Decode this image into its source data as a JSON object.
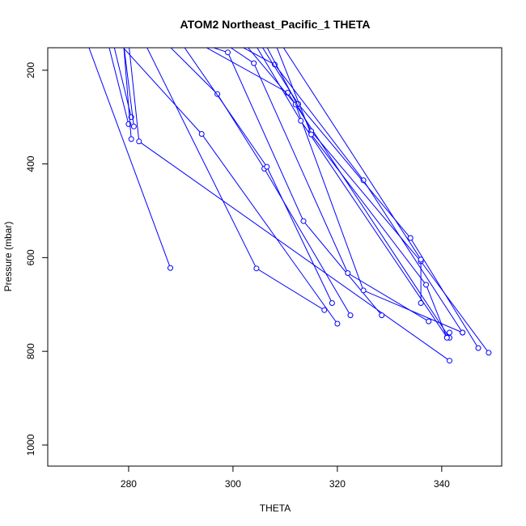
{
  "chart_data": {
    "type": "line",
    "title": "ATOM2 Northeast_Pacific_1 THETA",
    "xlabel": "THETA",
    "ylabel": "Pressure (mbar)",
    "xlim": [
      264.5,
      351.5
    ],
    "ylim": [
      1045,
      152
    ],
    "y_reversed": true,
    "x_ticks": [
      280,
      300,
      320,
      340
    ],
    "y_ticks": [
      200,
      400,
      600,
      800,
      1000
    ],
    "grid": false,
    "color": "#0000ff",
    "series": [
      {
        "x": [
          272,
          288
        ],
        "y": [
          140,
          622
        ],
        "points": [
          [
            288,
            622
          ]
        ]
      },
      {
        "x": [
          276,
          280
        ],
        "y": [
          140,
          315
        ],
        "points": [
          [
            280,
            315
          ]
        ]
      },
      {
        "x": [
          277,
          280.5
        ],
        "y": [
          140,
          300
        ],
        "points": [
          [
            280.5,
            300
          ]
        ]
      },
      {
        "x": [
          279,
          280.5
        ],
        "y": [
          140,
          347
        ],
        "points": [
          [
            280.5,
            347
          ]
        ]
      },
      {
        "x": [
          279,
          281
        ],
        "y": [
          140,
          320
        ],
        "points": [
          [
            281,
            320
          ]
        ]
      },
      {
        "x": [
          280,
          282,
          341.5
        ],
        "y": [
          140,
          352,
          820
        ],
        "points": [
          [
            282,
            352
          ],
          [
            341.5,
            820
          ]
        ]
      },
      {
        "x": [
          278,
          294,
          320
        ],
        "y": [
          140,
          336,
          741
        ],
        "points": [
          [
            294,
            336
          ],
          [
            320,
            741
          ]
        ]
      },
      {
        "x": [
          283,
          304.5,
          317.5
        ],
        "y": [
          140,
          623,
          712
        ],
        "points": [
          [
            304.5,
            623
          ],
          [
            317.5,
            712
          ]
        ]
      },
      {
        "x": [
          287,
          297,
          306,
          322.5
        ],
        "y": [
          140,
          251,
          410,
          723
        ],
        "points": [
          [
            297,
            251
          ],
          [
            306,
            410
          ],
          [
            322.5,
            723
          ]
        ]
      },
      {
        "x": [
          290,
          306.5,
          319
        ],
        "y": [
          140,
          406,
          697
        ],
        "points": [
          [
            306.5,
            406
          ],
          [
            319,
            697
          ]
        ]
      },
      {
        "x": [
          293,
          299,
          313.5,
          328.5
        ],
        "y": [
          140,
          162,
          522,
          723
        ],
        "points": [
          [
            299,
            162
          ],
          [
            313.5,
            522
          ],
          [
            328.5,
            723
          ]
        ]
      },
      {
        "x": [
          293,
          310.5,
          341.5
        ],
        "y": [
          140,
          248,
          771
        ],
        "points": [
          [
            310.5,
            248
          ],
          [
            341.5,
            771
          ]
        ]
      },
      {
        "x": [
          298,
          304,
          322,
          337.5
        ],
        "y": [
          140,
          185,
          633,
          736
        ],
        "points": [
          [
            304,
            185
          ],
          [
            322,
            633
          ],
          [
            337.5,
            736
          ]
        ]
      },
      {
        "x": [
          300,
          308,
          325,
          344
        ],
        "y": [
          140,
          188,
          435,
          760
        ],
        "points": [
          [
            308,
            188
          ],
          [
            325,
            435
          ],
          [
            344,
            760
          ]
        ]
      },
      {
        "x": [
          302,
          312,
          325,
          344
        ],
        "y": [
          140,
          273,
          670,
          760
        ],
        "points": [
          [
            312,
            273
          ],
          [
            325,
            670
          ],
          [
            344,
            760
          ]
        ]
      },
      {
        "x": [
          304,
          313,
          341,
          341.5
        ],
        "y": [
          140,
          308,
          770,
          760
        ],
        "points": [
          [
            313,
            308
          ],
          [
            341,
            770
          ],
          [
            341.5,
            760
          ]
        ]
      },
      {
        "x": [
          305,
          312.5,
          334,
          347
        ],
        "y": [
          140,
          272,
          558,
          793
        ],
        "points": [
          [
            312.5,
            272
          ],
          [
            334,
            558
          ],
          [
            347,
            793
          ]
        ]
      },
      {
        "x": [
          306,
          315,
          336,
          349
        ],
        "y": [
          140,
          330,
          608,
          803
        ],
        "points": [
          [
            315,
            330
          ],
          [
            336,
            608
          ],
          [
            349,
            803
          ]
        ]
      },
      {
        "x": [
          308,
          315,
          337,
          341
        ],
        "y": [
          140,
          337,
          658,
          771
        ],
        "points": [
          [
            315,
            337
          ],
          [
            337,
            658
          ],
          [
            341,
            771
          ]
        ]
      },
      {
        "x": [
          309,
          336,
          336
        ],
        "y": [
          140,
          604,
          697
        ],
        "points": [
          [
            336,
            604
          ],
          [
            336,
            697
          ]
        ]
      }
    ]
  }
}
